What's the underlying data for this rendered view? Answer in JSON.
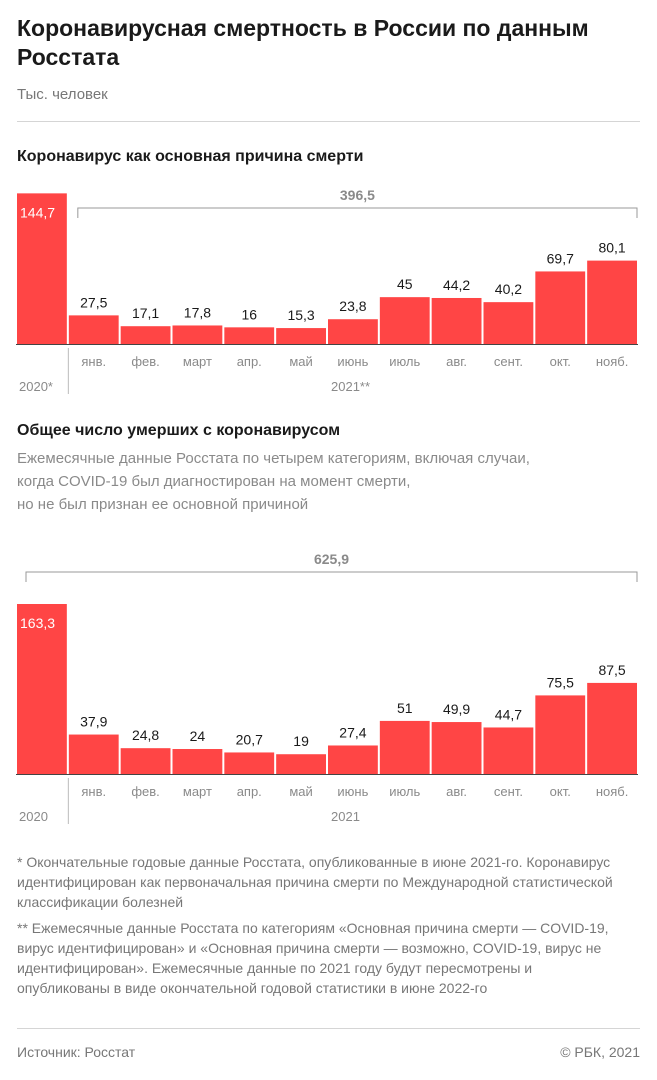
{
  "title": "Коронавирусная смертность в России по данным Росстата",
  "unit": "Тыс. человек",
  "colors": {
    "bar": "#ff4545",
    "text": "#1a1a1a",
    "muted": "#8a8a8a",
    "bracket": "#999999"
  },
  "chart_data": [
    {
      "type": "bar",
      "title": "Коронавирус как основная причина смерти",
      "categories": [
        "2020*",
        "янв.",
        "фев.",
        "март",
        "апр.",
        "май",
        "июнь",
        "июль",
        "авг.",
        "сент.",
        "окт.",
        "нояб."
      ],
      "values": [
        144.7,
        27.5,
        17.1,
        17.8,
        16,
        15.3,
        23.8,
        45,
        44.2,
        40.2,
        69.7,
        80.1
      ],
      "value_labels": [
        "144,7",
        "27,5",
        "17,1",
        "17,8",
        "16",
        "15,3",
        "23,8",
        "45",
        "44,2",
        "40,2",
        "69,7",
        "80,1"
      ],
      "year_labels": {
        "annual": "2020*",
        "monthly": "2021**"
      },
      "bracket": {
        "label": "396,5",
        "value": 396.5,
        "from_category": "янв.",
        "to_category": "нояб."
      },
      "ylim": [
        0,
        163.3
      ],
      "xlabel": "",
      "ylabel": ""
    },
    {
      "type": "bar",
      "title": "Общее число умерших с коронавирусом",
      "subtitle": "Ежемесячные данные Росстата по четырем категориям, включая случаи,\nкогда COVID-19 был диагностирован на момент смерти,\nно не был признан ее основной причиной",
      "categories": [
        "2020",
        "янв.",
        "фев.",
        "март",
        "апр.",
        "май",
        "июнь",
        "июль",
        "авг.",
        "сент.",
        "окт.",
        "нояб."
      ],
      "values": [
        163.3,
        37.9,
        24.8,
        24,
        20.7,
        19,
        27.4,
        51,
        49.9,
        44.7,
        75.5,
        87.5
      ],
      "value_labels": [
        "163,3",
        "37,9",
        "24,8",
        "24",
        "20,7",
        "19",
        "27,4",
        "51",
        "49,9",
        "44,7",
        "75,5",
        "87,5"
      ],
      "year_labels": {
        "annual": "2020",
        "monthly": "2021"
      },
      "bracket": {
        "label": "625,9",
        "value": 625.9,
        "from_category": "2020",
        "to_category": "нояб."
      },
      "ylim": [
        0,
        163.3
      ],
      "xlabel": "",
      "ylabel": ""
    }
  ],
  "notes": [
    "* Окончательные годовые данные Росстата, опубликованные в июне 2021-го. Коронавирус идентифицирован как первоначальная причина смерти по Международной статистической классификации болезней",
    "** Ежемесячные данные Росстата по категориям «Основная причина смерти — COVID-19, вирус идентифицирован» и «Основная причина смерти  — возможно, COVID-19, вирус не идентифицирован». Ежемесячные данные по 2021 году будут пересмотрены и опубликованы в виде окончательной годовой статистики в июне 2022-го"
  ],
  "source": "Источник: Росстат",
  "copyright": "© РБК, 2021"
}
